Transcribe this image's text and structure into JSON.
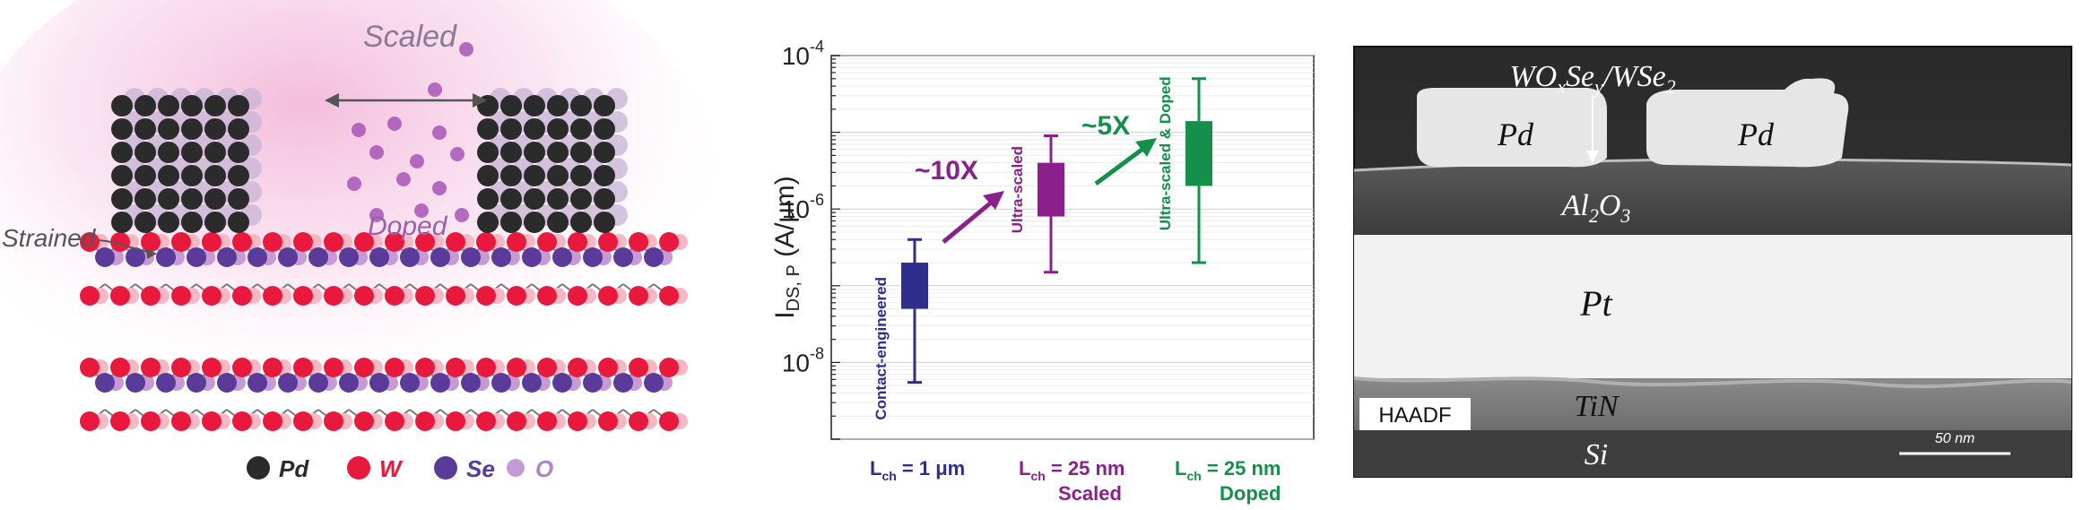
{
  "panel_a": {
    "labels": {
      "scaled": "Scaled",
      "doped": "Doped",
      "strained": "Strained"
    },
    "legend": [
      {
        "symbol": "Pd",
        "color": "#2b2b2b"
      },
      {
        "symbol": "W",
        "color": "#e8193c"
      },
      {
        "symbol": "Se",
        "color": "#5b3b99"
      },
      {
        "symbol": "O",
        "color": "#c59ad6"
      }
    ]
  },
  "panel_b": {
    "arrow_labels": {
      "first": "~10X",
      "second": "~5X"
    },
    "xlabels": [
      {
        "line1": "L",
        "sub": "ch",
        "rest": " = 1 μm",
        "line2": ""
      },
      {
        "line1": "L",
        "sub": "ch",
        "rest": " = 25 nm",
        "line2": "Scaled"
      },
      {
        "line1": "L",
        "sub": "ch",
        "rest": " = 25 nm",
        "line2": "Doped"
      }
    ]
  },
  "chart_data": {
    "type": "box",
    "ylabel": "I_DS, P (A/μm)",
    "yscale": "log",
    "ylim": [
      1e-09,
      0.0001
    ],
    "yticks": [
      "10^-4",
      "10^-6",
      "10^-8"
    ],
    "grid": true,
    "categories": [
      "Contact-engineered",
      "Ultra-scaled",
      "Ultra-scaled & Doped"
    ],
    "colors": [
      "#2e2e8c",
      "#8b1f8b",
      "#14904a"
    ],
    "boxes": [
      {
        "label": "Contact-engineered",
        "whisker_low": 5.5e-09,
        "q1": 5e-08,
        "q3": 2e-07,
        "whisker_high": 4e-07
      },
      {
        "label": "Ultra-scaled",
        "whisker_low": 1.5e-07,
        "q1": 8e-07,
        "q3": 4e-06,
        "whisker_high": 9e-06
      },
      {
        "label": "Ultra-scaled & Doped",
        "whisker_low": 2e-07,
        "q1": 2e-06,
        "q3": 1.4e-05,
        "whisker_high": 5e-05
      }
    ]
  },
  "panel_c": {
    "labels": {
      "interface": "WOxSey/WSe2",
      "pd_left": "Pd",
      "pd_right": "Pd",
      "al2o3": "Al2O3",
      "pt": "Pt",
      "tin": "TiN",
      "si": "Si",
      "haadf": "HAADF",
      "scalebar": "50 nm"
    }
  }
}
